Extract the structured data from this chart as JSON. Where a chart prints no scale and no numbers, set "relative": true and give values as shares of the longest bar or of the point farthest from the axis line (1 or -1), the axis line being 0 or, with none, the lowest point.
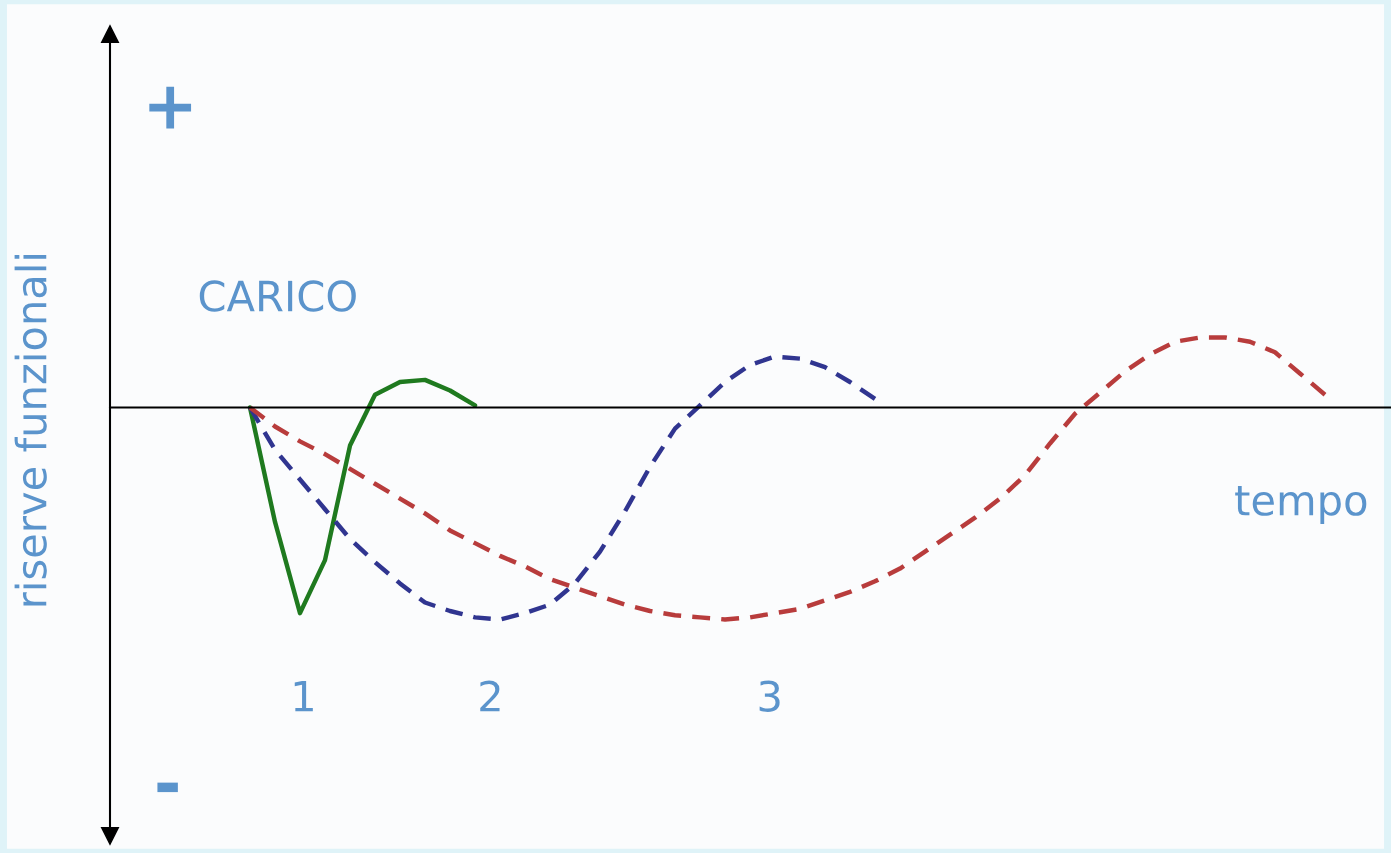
{
  "chart_data": {
    "type": "line",
    "relative": true,
    "xlabel": "tempo",
    "ylabel": "riserve funzionali",
    "tick_labels": false,
    "categories": [
      null,
      null,
      null,
      null,
      null,
      null,
      null,
      null,
      null,
      null,
      null,
      null,
      null,
      null,
      null,
      null,
      null,
      null,
      null,
      null,
      null,
      null,
      null,
      null,
      null,
      null,
      null,
      null,
      null,
      null,
      null,
      null,
      null,
      null,
      null,
      null,
      null,
      null,
      null,
      null,
      null,
      null,
      null,
      null
    ],
    "series": [
      {
        "color": "#1f7a1f",
        "line_style": "solid",
        "values": [
          0,
          -0.54,
          -0.97,
          -0.72,
          -0.18,
          0.06,
          0.12,
          0.13,
          0.08,
          0.01,
          null,
          null,
          null,
          null,
          null,
          null,
          null,
          null,
          null,
          null,
          null,
          null,
          null,
          null,
          null,
          null,
          null,
          null,
          null,
          null,
          null,
          null,
          null,
          null,
          null,
          null,
          null,
          null,
          null,
          null,
          null,
          null,
          null,
          null
        ]
      },
      {
        "color": "#303590",
        "line_style": "dashed",
        "values": [
          0,
          -0.2,
          -0.34,
          -0.48,
          -0.62,
          -0.73,
          -0.83,
          -0.92,
          -0.96,
          -0.99,
          -1,
          -0.97,
          -0.93,
          -0.83,
          -0.68,
          -0.49,
          -0.28,
          -0.1,
          0.01,
          0.12,
          0.2,
          0.24,
          0.23,
          0.19,
          0.12,
          0.04,
          null,
          null,
          null,
          null,
          null,
          null,
          null,
          null,
          null,
          null,
          null,
          null,
          null,
          null,
          null,
          null,
          null,
          null
        ]
      },
      {
        "color": "#b83c3c",
        "line_style": "dashed",
        "values": [
          0,
          -0.09,
          -0.16,
          -0.22,
          -0.29,
          -0.36,
          -0.43,
          -0.5,
          -0.58,
          -0.64,
          -0.7,
          -0.75,
          -0.81,
          -0.85,
          -0.89,
          -0.93,
          -0.96,
          -0.98,
          -0.99,
          -1,
          -0.99,
          -0.97,
          -0.95,
          -0.91,
          -0.87,
          -0.82,
          -0.76,
          -0.68,
          -0.6,
          -0.52,
          -0.43,
          -0.32,
          -0.17,
          -0.03,
          0.07,
          0.17,
          0.25,
          0.31,
          0.33,
          0.33,
          0.31,
          0.26,
          0.16,
          0.06
        ]
      }
    ],
    "annotations": [
      "CARICO",
      "+",
      "-",
      "1",
      "2",
      "3"
    ]
  }
}
